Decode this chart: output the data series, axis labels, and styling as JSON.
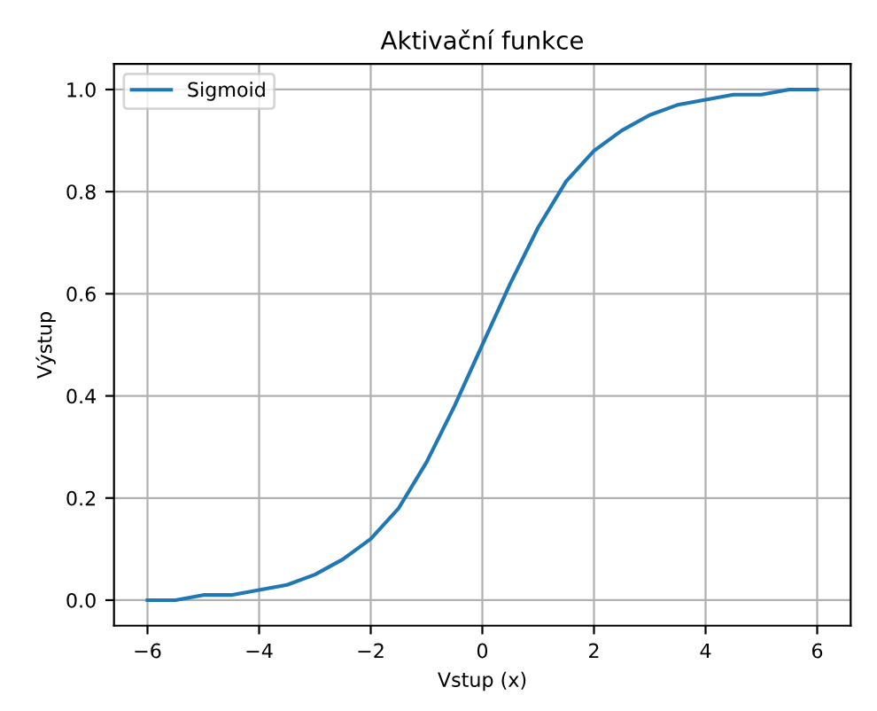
{
  "chart_data": {
    "type": "line",
    "title": "Aktivační funkce",
    "xlabel": "Vstup (x)",
    "ylabel": "Výstup",
    "x": [
      -6,
      -5.5,
      -5,
      -4.5,
      -4,
      -3.5,
      -3,
      -2.5,
      -2,
      -1.5,
      -1,
      -0.5,
      0,
      0.5,
      1,
      1.5,
      2,
      2.5,
      3,
      3.5,
      4,
      4.5,
      5,
      5.5,
      6
    ],
    "series": [
      {
        "name": "Sigmoid",
        "color": "#1f77b4",
        "values": [
          0.0,
          0.0,
          0.01,
          0.01,
          0.02,
          0.03,
          0.05,
          0.08,
          0.12,
          0.18,
          0.27,
          0.38,
          0.5,
          0.62,
          0.73,
          0.82,
          0.88,
          0.92,
          0.95,
          0.97,
          0.98,
          0.99,
          0.99,
          1.0,
          1.0
        ]
      }
    ],
    "xlim": [
      -6.6,
      6.6
    ],
    "ylim": [
      -0.05,
      1.05
    ],
    "xticks": [
      {
        "value": -6,
        "label": "−6"
      },
      {
        "value": -4,
        "label": "−4"
      },
      {
        "value": -2,
        "label": "−2"
      },
      0,
      2,
      4,
      6
    ],
    "yticks": [
      {
        "value": 0,
        "label": "0.0"
      },
      {
        "value": 0.2,
        "label": "0.2"
      },
      {
        "value": 0.4,
        "label": "0.4"
      },
      {
        "value": 0.6,
        "label": "0.6"
      },
      {
        "value": 0.8,
        "label": "0.8"
      },
      {
        "value": 1.0,
        "label": "1.0"
      }
    ],
    "grid": true,
    "legend": "top left",
    "line_style": "solid",
    "marker": "none"
  }
}
